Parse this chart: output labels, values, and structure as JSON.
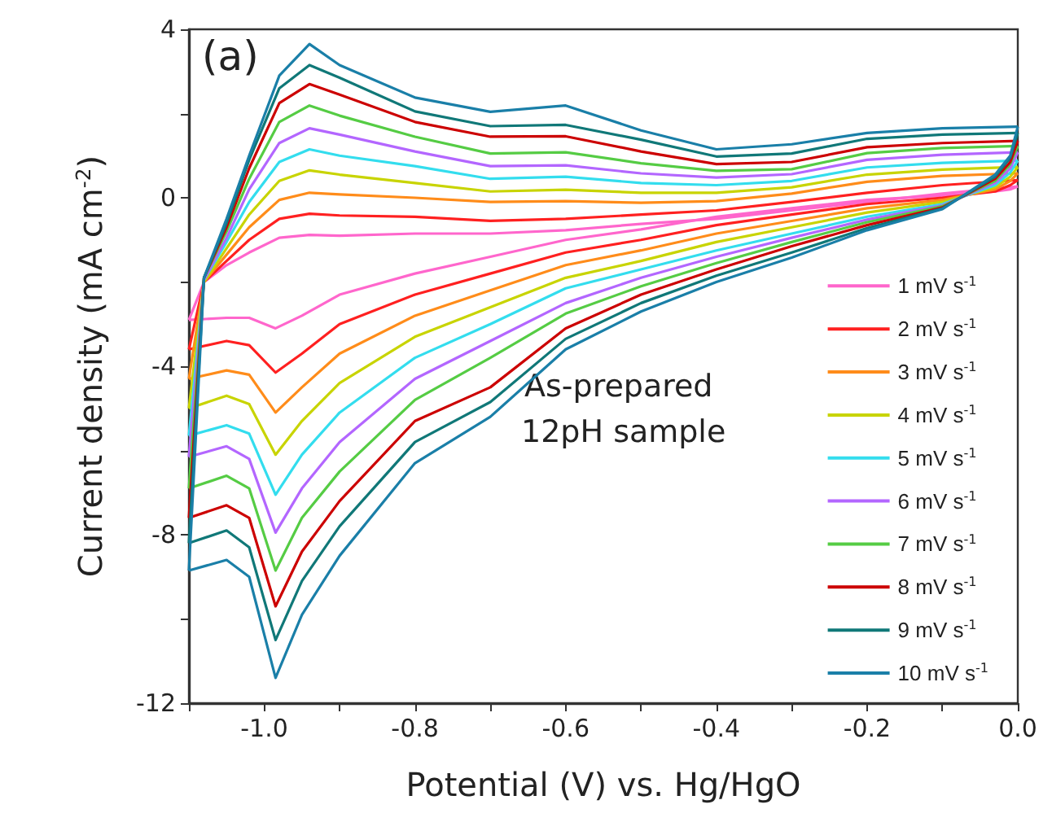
{
  "chart_data": {
    "type": "line",
    "xlabel": "Potential (V) vs. Hg/HgO",
    "ylabel": "Current density (mA cm$^{-2}$)",
    "annotations": [
      "(a)",
      "As-prepared",
      "12pH sample"
    ],
    "xlim": [
      -1.1,
      0.0
    ],
    "xticks": [
      {
        "value": -1.1,
        "label": null
      },
      {
        "value": -1.0,
        "label": "-1.0"
      },
      {
        "value": -0.9,
        "label": null
      },
      {
        "value": -0.8,
        "label": "-0.8"
      },
      {
        "value": -0.7,
        "label": null
      },
      {
        "value": -0.6,
        "label": "-0.6"
      },
      {
        "value": -0.5,
        "label": null
      },
      {
        "value": -0.4,
        "label": "-0.4"
      },
      {
        "value": -0.3,
        "label": null
      },
      {
        "value": -0.2,
        "label": "-0.2"
      },
      {
        "value": -0.1,
        "label": null
      },
      {
        "value": 0.0,
        "label": "0.0"
      }
    ],
    "ylim": [
      -12,
      4
    ],
    "yticks": [
      -12,
      {
        "value": -10,
        "label": null
      },
      -8,
      {
        "value": -6,
        "label": null
      },
      -4,
      {
        "value": -2,
        "label": null
      },
      0,
      {
        "value": 2,
        "label": null
      },
      4
    ],
    "grid": false,
    "legend": "bottom right",
    "marker": "none",
    "series": [
      {
        "name": "1 mV s$^{-1}$",
        "color": "#ff66cc",
        "x": [
          -1.1,
          -1.08,
          -1.05,
          -1.02,
          -0.98,
          -0.94,
          -0.9,
          -0.8,
          -0.7,
          -0.6,
          -0.5,
          -0.4,
          -0.3,
          -0.2,
          -0.1,
          0
        ],
        "values": [
          -2.9,
          -2.0,
          -1.6,
          -1.3,
          -0.95,
          -0.88,
          -0.9,
          -0.85,
          -0.85,
          -0.77,
          -0.62,
          -0.5,
          -0.3,
          -0.1,
          0.1,
          0.27
        ]
      },
      {
        "color": "#ff66cc",
        "x": [
          -1.1,
          -1.05,
          -1.02,
          -0.985,
          -0.95,
          -0.9,
          -0.8,
          -0.7,
          -0.6,
          -0.5,
          -0.4,
          -0.3,
          -0.2,
          -0.1,
          -0.03,
          -0.01,
          0
        ],
        "values": [
          -2.9,
          -2.85,
          -2.85,
          -3.1,
          -2.8,
          -2.3,
          -1.8,
          -1.4,
          -1.0,
          -0.75,
          -0.45,
          -0.25,
          -0.05,
          0.05,
          0.15,
          0.2,
          0.27
        ]
      },
      {
        "name": "2 mV s$^{-1}$",
        "color": "#ff2020",
        "x": [
          -1.1,
          -1.08,
          -1.05,
          -1.02,
          -0.98,
          -0.94,
          -0.9,
          -0.8,
          -0.7,
          -0.6,
          -0.5,
          -0.4,
          -0.3,
          -0.2,
          -0.1,
          0
        ],
        "values": [
          -3.6,
          -2.0,
          -1.5,
          -1.0,
          -0.5,
          -0.38,
          -0.42,
          -0.45,
          -0.55,
          -0.5,
          -0.4,
          -0.3,
          -0.1,
          0.12,
          0.3,
          0.42
        ]
      },
      {
        "color": "#ff2020",
        "x": [
          -1.1,
          -1.05,
          -1.02,
          -0.985,
          -0.95,
          -0.9,
          -0.8,
          -0.7,
          -0.6,
          -0.5,
          -0.4,
          -0.3,
          -0.2,
          -0.1,
          -0.03,
          -0.01,
          0
        ],
        "values": [
          -3.6,
          -3.4,
          -3.5,
          -4.15,
          -3.7,
          -3.0,
          -2.3,
          -1.8,
          -1.3,
          -1.0,
          -0.65,
          -0.4,
          -0.15,
          0.0,
          0.15,
          0.3,
          0.42
        ]
      },
      {
        "name": "3 mV s$^{-1}$",
        "color": "#ff8c1a",
        "x": [
          -1.1,
          -1.08,
          -1.05,
          -1.02,
          -0.98,
          -0.94,
          -0.9,
          -0.8,
          -0.7,
          -0.6,
          -0.5,
          -0.4,
          -0.3,
          -0.2,
          -0.1,
          0
        ],
        "values": [
          -4.3,
          -2.0,
          -1.35,
          -0.7,
          -0.05,
          0.12,
          0.08,
          0.0,
          -0.1,
          -0.08,
          -0.12,
          -0.08,
          0.1,
          0.38,
          0.52,
          0.58
        ]
      },
      {
        "color": "#ff8c1a",
        "x": [
          -1.1,
          -1.05,
          -1.02,
          -0.985,
          -0.95,
          -0.9,
          -0.8,
          -0.7,
          -0.6,
          -0.5,
          -0.4,
          -0.3,
          -0.2,
          -0.1,
          -0.03,
          -0.01,
          0
        ],
        "values": [
          -4.3,
          -4.1,
          -4.2,
          -5.1,
          -4.5,
          -3.7,
          -2.8,
          -2.2,
          -1.6,
          -1.25,
          -0.85,
          -0.55,
          -0.25,
          -0.05,
          0.2,
          0.4,
          0.58
        ]
      },
      {
        "name": "4 mV s$^{-1}$",
        "color": "#c8d400",
        "x": [
          -1.1,
          -1.08,
          -1.05,
          -1.02,
          -0.98,
          -0.94,
          -0.9,
          -0.8,
          -0.7,
          -0.6,
          -0.5,
          -0.4,
          -0.3,
          -0.2,
          -0.1,
          0
        ],
        "values": [
          -5.0,
          -2.0,
          -1.2,
          -0.4,
          0.4,
          0.65,
          0.55,
          0.35,
          0.15,
          0.19,
          0.12,
          0.12,
          0.25,
          0.55,
          0.67,
          0.73
        ]
      },
      {
        "color": "#c8d400",
        "x": [
          -1.1,
          -1.05,
          -1.02,
          -0.985,
          -0.95,
          -0.9,
          -0.8,
          -0.7,
          -0.6,
          -0.5,
          -0.4,
          -0.3,
          -0.2,
          -0.1,
          -0.03,
          -0.01,
          0
        ],
        "values": [
          -5.0,
          -4.7,
          -4.9,
          -6.1,
          -5.3,
          -4.4,
          -3.3,
          -2.6,
          -1.9,
          -1.5,
          -1.05,
          -0.7,
          -0.35,
          -0.1,
          0.25,
          0.5,
          0.73
        ]
      },
      {
        "name": "5 mV s$^{-1}$",
        "color": "#33ddee",
        "x": [
          -1.1,
          -1.08,
          -1.05,
          -1.02,
          -0.98,
          -0.94,
          -0.9,
          -0.8,
          -0.7,
          -0.6,
          -0.5,
          -0.4,
          -0.3,
          -0.2,
          -0.1,
          0
        ],
        "values": [
          -5.65,
          -1.95,
          -1.05,
          -0.1,
          0.85,
          1.15,
          1.0,
          0.75,
          0.45,
          0.5,
          0.35,
          0.3,
          0.4,
          0.72,
          0.83,
          0.88
        ]
      },
      {
        "color": "#33ddee",
        "x": [
          -1.1,
          -1.05,
          -1.02,
          -0.985,
          -0.95,
          -0.9,
          -0.8,
          -0.7,
          -0.6,
          -0.5,
          -0.4,
          -0.3,
          -0.2,
          -0.1,
          -0.03,
          -0.01,
          0
        ],
        "values": [
          -5.65,
          -5.4,
          -5.6,
          -7.05,
          -6.1,
          -5.1,
          -3.8,
          -3.0,
          -2.15,
          -1.7,
          -1.25,
          -0.85,
          -0.45,
          -0.15,
          0.3,
          0.6,
          0.88
        ]
      },
      {
        "name": "6 mV s$^{-1}$",
        "color": "#b366ff",
        "x": [
          -1.1,
          -1.08,
          -1.05,
          -1.02,
          -0.98,
          -0.94,
          -0.9,
          -0.8,
          -0.7,
          -0.6,
          -0.5,
          -0.4,
          -0.3,
          -0.2,
          -0.1,
          0
        ],
        "values": [
          -6.15,
          -1.95,
          -0.95,
          0.2,
          1.3,
          1.65,
          1.5,
          1.1,
          0.75,
          0.77,
          0.58,
          0.48,
          0.56,
          0.9,
          1.02,
          1.08
        ]
      },
      {
        "color": "#b366ff",
        "x": [
          -1.1,
          -1.05,
          -1.02,
          -0.985,
          -0.95,
          -0.9,
          -0.8,
          -0.7,
          -0.6,
          -0.5,
          -0.4,
          -0.3,
          -0.2,
          -0.1,
          -0.03,
          -0.01,
          0
        ],
        "values": [
          -6.15,
          -5.9,
          -6.2,
          -7.95,
          -6.9,
          -5.8,
          -4.3,
          -3.4,
          -2.5,
          -1.9,
          -1.4,
          -0.95,
          -0.52,
          -0.18,
          0.35,
          0.7,
          1.08
        ]
      },
      {
        "name": "7 mV s$^{-1}$",
        "color": "#55cc44",
        "x": [
          -1.1,
          -1.08,
          -1.05,
          -1.02,
          -0.98,
          -0.94,
          -0.9,
          -0.8,
          -0.7,
          -0.6,
          -0.5,
          -0.4,
          -0.3,
          -0.2,
          -0.1,
          0
        ],
        "values": [
          -6.9,
          -1.9,
          -0.8,
          0.45,
          1.8,
          2.19,
          1.95,
          1.45,
          1.05,
          1.08,
          0.82,
          0.64,
          0.68,
          1.06,
          1.18,
          1.23
        ]
      },
      {
        "color": "#55cc44",
        "x": [
          -1.1,
          -1.05,
          -1.02,
          -0.985,
          -0.95,
          -0.9,
          -0.8,
          -0.7,
          -0.6,
          -0.5,
          -0.4,
          -0.3,
          -0.2,
          -0.1,
          -0.03,
          -0.01,
          0
        ],
        "values": [
          -6.9,
          -6.6,
          -6.9,
          -8.85,
          -7.6,
          -6.5,
          -4.8,
          -3.8,
          -2.75,
          -2.1,
          -1.55,
          -1.05,
          -0.58,
          -0.2,
          0.4,
          0.8,
          1.23
        ]
      },
      {
        "name": "8 mV s$^{-1}$",
        "color": "#cc0000",
        "x": [
          -1.1,
          -1.08,
          -1.05,
          -1.02,
          -0.98,
          -0.94,
          -0.9,
          -0.8,
          -0.7,
          -0.6,
          -0.5,
          -0.4,
          -0.3,
          -0.2,
          -0.1,
          0
        ],
        "values": [
          -7.6,
          -1.9,
          -0.7,
          0.7,
          2.25,
          2.7,
          2.45,
          1.8,
          1.45,
          1.46,
          1.1,
          0.8,
          0.85,
          1.2,
          1.3,
          1.35
        ]
      },
      {
        "color": "#cc0000",
        "x": [
          -1.1,
          -1.05,
          -1.02,
          -0.985,
          -0.95,
          -0.9,
          -0.8,
          -0.7,
          -0.6,
          -0.5,
          -0.4,
          -0.3,
          -0.2,
          -0.1,
          -0.03,
          -0.01,
          0
        ],
        "values": [
          -7.6,
          -7.3,
          -7.6,
          -9.7,
          -8.4,
          -7.2,
          -5.3,
          -4.5,
          -3.1,
          -2.3,
          -1.7,
          -1.15,
          -0.65,
          -0.23,
          0.45,
          0.85,
          1.35
        ]
      },
      {
        "name": "9 mV s$^{-1}$",
        "color": "#107878",
        "x": [
          -1.1,
          -1.08,
          -1.05,
          -1.02,
          -0.98,
          -0.94,
          -0.9,
          -0.8,
          -0.7,
          -0.6,
          -0.5,
          -0.4,
          -0.3,
          -0.2,
          -0.1,
          0
        ],
        "values": [
          -8.2,
          -1.9,
          -0.6,
          0.9,
          2.6,
          3.15,
          2.85,
          2.05,
          1.7,
          1.73,
          1.38,
          0.98,
          1.05,
          1.4,
          1.5,
          1.54
        ]
      },
      {
        "color": "#107878",
        "x": [
          -1.1,
          -1.05,
          -1.02,
          -0.985,
          -0.95,
          -0.9,
          -0.8,
          -0.7,
          -0.6,
          -0.5,
          -0.4,
          -0.3,
          -0.2,
          -0.1,
          -0.03,
          -0.01,
          0
        ],
        "values": [
          -8.2,
          -7.9,
          -8.3,
          -10.5,
          -9.1,
          -7.8,
          -5.8,
          -4.85,
          -3.35,
          -2.5,
          -1.85,
          -1.3,
          -0.72,
          -0.25,
          0.5,
          0.95,
          1.54
        ]
      },
      {
        "name": "10 mV s$^{-1}$",
        "color": "#1a7fa8",
        "x": [
          -1.1,
          -1.08,
          -1.05,
          -1.02,
          -0.98,
          -0.94,
          -0.9,
          -0.8,
          -0.7,
          -0.6,
          -0.5,
          -0.4,
          -0.3,
          -0.2,
          -0.1,
          0
        ],
        "values": [
          -8.85,
          -1.9,
          -0.5,
          1.0,
          2.9,
          3.65,
          3.15,
          2.38,
          2.04,
          2.19,
          1.6,
          1.15,
          1.27,
          1.54,
          1.65,
          1.69
        ]
      },
      {
        "color": "#1a7fa8",
        "x": [
          -1.1,
          -1.05,
          -1.02,
          -0.985,
          -0.95,
          -0.9,
          -0.8,
          -0.7,
          -0.6,
          -0.5,
          -0.4,
          -0.3,
          -0.2,
          -0.1,
          -0.03,
          -0.01,
          0
        ],
        "values": [
          -8.85,
          -8.6,
          -9.0,
          -11.4,
          -9.9,
          -8.5,
          -6.3,
          -5.2,
          -3.6,
          -2.7,
          -2.0,
          -1.42,
          -0.77,
          -0.27,
          0.55,
          1.0,
          1.69
        ]
      }
    ]
  }
}
